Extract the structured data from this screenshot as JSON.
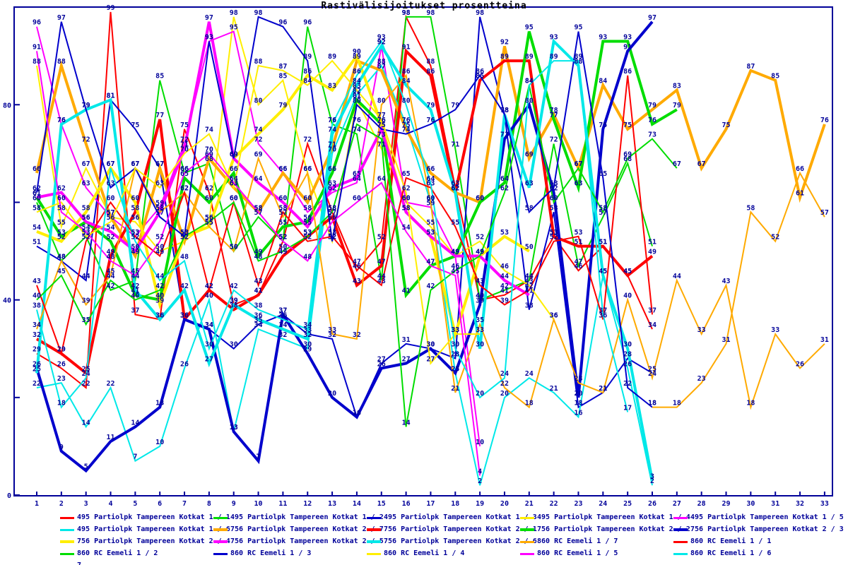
{
  "title": "Rastivälisijoitukset prosentteina",
  "palette": {
    "red": "#ff0000",
    "green": "#00dd00",
    "blue": "#0000cc",
    "yellow": "#ffee00",
    "magenta": "#ff00ff",
    "cyan": "#00e8e8",
    "orange": "#ffaa00",
    "axis": "#000099",
    "background": "#ffffff"
  },
  "axes": {
    "x_tick_labels": [
      "1",
      "2",
      "3",
      "4",
      "5",
      "6",
      "7",
      "8",
      "9",
      "10",
      "11",
      "12",
      "13",
      "14",
      "15",
      "16",
      "17",
      "18",
      "19",
      "20",
      "21",
      "22",
      "23",
      "24",
      "25",
      "26",
      "27",
      "28",
      "29",
      "30",
      "31",
      "32",
      "33"
    ],
    "y_ticks": [
      {
        "value": 0,
        "label": "0"
      },
      {
        "value": 20,
        "label": ""
      },
      {
        "value": 40,
        "label": "40"
      },
      {
        "value": 60,
        "label": ""
      },
      {
        "value": 80,
        "label": "80"
      },
      {
        "value": 100,
        "label": ""
      }
    ],
    "ylim": [
      0,
      100
    ],
    "xlim": [
      1,
      33
    ]
  },
  "chart_data": {
    "type": "line",
    "x": [
      1,
      2,
      3,
      4,
      5,
      6,
      7,
      8,
      9,
      10,
      11,
      12,
      13,
      14,
      15,
      16,
      17,
      18,
      19,
      20,
      21,
      22,
      23,
      24,
      25,
      26,
      27,
      28,
      29,
      30,
      31,
      32,
      33
    ],
    "xlabel": "",
    "ylabel": "",
    "title": "Rastivälisijoitukset prosentteina",
    "legend_position": "bottom",
    "grid": false,
    "point_labels": true,
    "series": [
      {
        "name": "495 Partiolpk Tampereen Kotkat 1 / 1",
        "color": "red",
        "width": 2,
        "start_x": 1,
        "values": [
          29,
          26,
          22,
          99,
          37,
          36,
          75,
          62,
          39,
          41,
          52,
          72,
          58,
          46,
          52,
          98,
          88,
          63,
          40,
          41,
          44,
          53,
          46,
          51,
          45,
          34
        ]
      },
      {
        "name": "495 Partiolpk Tampereen Kotkat 1 / 2",
        "color": "green",
        "width": 2,
        "start_x": 1,
        "values": [
          60,
          48,
          53,
          42,
          44,
          85,
          66,
          68,
          50,
          57,
          52,
          96,
          76,
          74,
          44,
          98,
          98,
          71,
          40,
          42,
          44,
          72,
          47,
          57,
          68,
          51
        ]
      },
      {
        "name": "495 Partiolpk Tampereen Kotkat 1 / 3",
        "color": "blue",
        "width": 2,
        "start_x": 1,
        "values": [
          51,
          48,
          44,
          81,
          75,
          67,
          36,
          34,
          30,
          35,
          37,
          33,
          32,
          16,
          27,
          31,
          30,
          28,
          98,
          78,
          38,
          58,
          18,
          21,
          28,
          25
        ]
      },
      {
        "name": "495 Partiolpk Tampereen Kotkat 1 / 4",
        "color": "yellow",
        "width": 2,
        "start_x": 1,
        "values": [
          88,
          55,
          67,
          57,
          56,
          50,
          52,
          56,
          98,
          80,
          85,
          66,
          52,
          81,
          71,
          60,
          55,
          49,
          52,
          46,
          43,
          36
        ]
      },
      {
        "name": "495 Partiolpk Tampereen Kotkat 1 / 5",
        "color": "magenta",
        "width": 2,
        "start_x": 1,
        "values": [
          96,
          76,
          63,
          57,
          53,
          59,
          72,
          93,
          95,
          72,
          66,
          58,
          62,
          64,
          92,
          60,
          59,
          49,
          10
        ]
      },
      {
        "name": "495 Partiolpk Tampereen Kotkat 1 / 6",
        "color": "cyan",
        "width": 2,
        "start_x": 1,
        "values": [
          22,
          23,
          14,
          22,
          7,
          10,
          26,
          40,
          13,
          34,
          32,
          30,
          70,
          82,
          88,
          76,
          60,
          25,
          2,
          20,
          24,
          21,
          16,
          45,
          26,
          2
        ]
      },
      {
        "name": "756 Partiolpk Tampereen Kotkat 2 / 7",
        "color": "orange",
        "width": 4,
        "start_x": 1,
        "values": [
          66,
          88,
          72,
          57,
          49,
          67,
          52,
          69,
          63,
          58,
          66,
          60,
          71,
          89,
          87,
          75,
          66,
          62,
          60,
          92,
          69,
          78,
          67,
          84,
          75,
          79,
          83,
          67,
          75,
          87,
          85,
          61,
          76
        ]
      },
      {
        "name": "756 Partiolpk Tampereen Kotkat 2 / 1",
        "color": "red",
        "width": 4,
        "start_x": 1,
        "values": [
          32,
          29,
          25,
          49,
          58,
          77,
          36,
          42,
          38,
          41,
          49,
          53,
          57,
          43,
          47,
          91,
          86,
          62,
          85,
          89,
          89,
          53,
          51,
          51,
          45,
          49
        ]
      },
      {
        "name": "756 Partiolpk Tampereen Kotkat 2 / 2",
        "color": "green",
        "width": 4,
        "start_x": 1,
        "values": [
          61,
          53,
          56,
          52,
          41,
          40,
          65,
          60,
          66,
          49,
          55,
          56,
          66,
          81,
          76,
          41,
          47,
          49,
          60,
          64,
          95,
          77,
          63,
          93,
          93,
          76,
          79
        ]
      },
      {
        "name": "756 Partiolpk Tampereen Kotkat 2 / 3",
        "color": "blue",
        "width": 4,
        "start_x": 1,
        "values": [
          26,
          9,
          5,
          11,
          14,
          18,
          36,
          34,
          13,
          7,
          37,
          29,
          20,
          16,
          26,
          27,
          30,
          25,
          39,
          73,
          80,
          62,
          20,
          75,
          91,
          97
        ]
      },
      {
        "name": "756 Partiolpk Tampereen Kotkat 2 / 4",
        "color": "yellow",
        "width": 4,
        "start_x": 1,
        "values": [
          54,
          52,
          58,
          67,
          60,
          39,
          53,
          55,
          69,
          74,
          79,
          86,
          83,
          90,
          76,
          58,
          53,
          33,
          49,
          53,
          50
        ]
      },
      {
        "name": "756 Partiolpk Tampereen Kotkat 2 / 5",
        "color": "magenta",
        "width": 4,
        "start_x": 1,
        "values": [
          61,
          62,
          56,
          54,
          50,
          58,
          71,
          97,
          69,
          64,
          60,
          55,
          63,
          65,
          75,
          58,
          53,
          49,
          49,
          44,
          41
        ]
      },
      {
        "name": "756 Partiolpk Tampereen Kotkat 2 / 6",
        "color": "cyan",
        "width": 4,
        "start_x": 1,
        "values": [
          25,
          76,
          79,
          81,
          42,
          36,
          42,
          27,
          39,
          36,
          34,
          32,
          74,
          84,
          92,
          84,
          79,
          62,
          30,
          78,
          63,
          93,
          88,
          45,
          30,
          3
        ]
      },
      {
        "name": "860 RC Eemeli 1 / 7",
        "color": "orange",
        "width": 2,
        "start_x": 1,
        "values": [
          34,
          48,
          39,
          45,
          67,
          58,
          62,
          55,
          50,
          69,
          57,
          66,
          33,
          32,
          80,
          86,
          60,
          21,
          35,
          22,
          18,
          36,
          23,
          21,
          40,
          24,
          44,
          33,
          43,
          18,
          33,
          26,
          31
        ]
      },
      {
        "name": "860 RC Eemeli 1 / 1",
        "color": "red",
        "width": 2,
        "start_x": 1,
        "values": [
          43,
          29,
          52,
          60,
          53,
          49,
          62,
          42,
          60,
          43,
          58,
          52,
          53,
          47,
          43,
          65,
          63,
          55,
          43,
          39,
          42,
          52,
          53,
          36,
          86,
          37
        ]
      },
      {
        "name": "860 RC Eemeli 1 / 2",
        "color": "green",
        "width": 2,
        "start_x": 1,
        "values": [
          40,
          45,
          35,
          44,
          40,
          42,
          53,
          56,
          60,
          48,
          50,
          53,
          58,
          76,
          73,
          14,
          42,
          46,
          49,
          62,
          84,
          60,
          67,
          58,
          69,
          73,
          67
        ]
      },
      {
        "name": "860 RC Eemeli 1 / 3",
        "color": "blue",
        "width": 2,
        "start_x": 1,
        "values": [
          62,
          97,
          79,
          63,
          67,
          57,
          53,
          93,
          69,
          98,
          96,
          89,
          52,
          80,
          75,
          74,
          76,
          79,
          86,
          78,
          58,
          63,
          95,
          65,
          22,
          18
        ]
      },
      {
        "name": "860 RC Eemeli 1 / 4",
        "color": "yellow",
        "width": 2,
        "start_x": 1,
        "values": [
          58,
          60,
          53,
          56,
          67,
          63,
          70,
          74,
          63,
          88,
          87,
          84,
          89,
          83,
          77,
          62,
          27,
          33,
          33
        ]
      },
      {
        "name": "860 RC Eemeli 1 / 5",
        "color": "magenta",
        "width": 2,
        "start_x": 1,
        "values": [
          91,
          58,
          54,
          48,
          45,
          52,
          66,
          70,
          64,
          58,
          52,
          48,
          56,
          60,
          64,
          54,
          47,
          45,
          4
        ]
      },
      {
        "name": "860 RC Eemeli 1 / 6",
        "color": "cyan",
        "width": 2,
        "start_x": 1,
        "values": [
          38,
          18,
          24,
          67,
          52,
          44,
          48,
          30,
          42,
          38,
          36,
          34,
          76,
          86,
          93,
          80,
          64,
          30,
          20,
          24,
          84,
          89,
          89,
          37,
          17
        ]
      },
      {
        "name": "7",
        "color": "orange",
        "width": 2,
        "start_x": 26,
        "values": [
          18,
          18,
          23,
          31,
          58,
          52,
          66,
          57
        ]
      }
    ]
  },
  "legend": {
    "columns": 5,
    "entries_order": "same as chart_data.series"
  }
}
